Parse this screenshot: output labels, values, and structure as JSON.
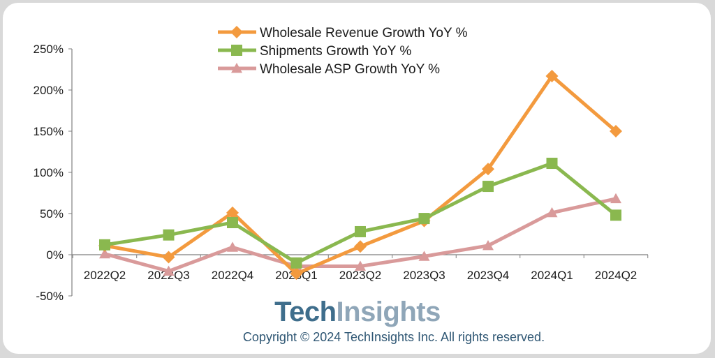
{
  "chart_data": {
    "type": "line",
    "categories": [
      "2022Q2",
      "2022Q3",
      "2022Q4",
      "2023Q1",
      "2023Q2",
      "2023Q3",
      "2023Q4",
      "2024Q1",
      "2024Q2"
    ],
    "yticks": [
      "250%",
      "200%",
      "150%",
      "100%",
      "50%",
      "0%",
      "-50%"
    ],
    "ylim": [
      -50,
      250
    ],
    "legend_position": "top-center",
    "grid": false,
    "series": [
      {
        "name": "Wholesale Revenue Growth YoY %",
        "color": "#f39a3e",
        "marker": "diamond",
        "values": [
          11,
          -3,
          51,
          -23,
          10,
          41,
          104,
          217,
          150
        ]
      },
      {
        "name": "Shipments Growth YoY %",
        "color": "#8ab84f",
        "marker": "square",
        "values": [
          12,
          24,
          39,
          -10,
          28,
          44,
          83,
          111,
          48
        ]
      },
      {
        "name": "Wholesale ASP Growth YoY %",
        "color": "#d99a9a",
        "marker": "triangle",
        "values": [
          1,
          -20,
          9,
          -14,
          -14,
          -2,
          11,
          51,
          68
        ]
      }
    ]
  },
  "branding": {
    "logo_part1": "Tech",
    "logo_part2": "Insights",
    "copyright": "Copyright © 2024 TechInsights Inc.  All rights reserved."
  }
}
